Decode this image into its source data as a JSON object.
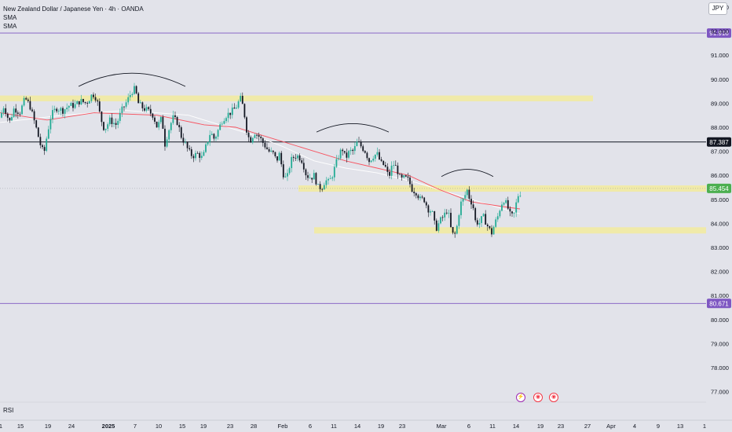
{
  "legend": {
    "symbol": "New Zealand Dollar / Japanese Yen · 4h · OANDA",
    "ind1": "SMA",
    "ind2": "SMA"
  },
  "currency": "JPY",
  "rsi_label": "RSI",
  "event_icons": [
    "flash-icon",
    "economic-event-icon",
    "economic-event-icon"
  ],
  "colors": {
    "up": "#22ab94",
    "down": "#131722",
    "sma_fast": "#f7525f",
    "sma_slow": "#ffffff",
    "zone": "#f2eb9d",
    "level_purple": "#7e57c2",
    "level_black": "#131722",
    "price_green": "#4caf50"
  },
  "chart_data": {
    "type": "candlestick",
    "symbol": "NZDJPY",
    "timeframe": "4h",
    "y_range": [
      76.6,
      93.5
    ],
    "y_ticks": [
      "93.000",
      "92.000",
      "91.000",
      "90.000",
      "89.000",
      "88.000",
      "87.000",
      "86.000",
      "85.000",
      "84.000",
      "83.000",
      "82.000",
      "81.000",
      "80.000",
      "79.000",
      "78.000",
      "77.000"
    ],
    "x_ticks": [
      "1",
      "15",
      "19",
      "24",
      "2025",
      "7",
      "10",
      "15",
      "19",
      "23",
      "28",
      "Feb",
      "6",
      "11",
      "14",
      "19",
      "23",
      "Mar",
      "6",
      "11",
      "14",
      "19",
      "23",
      "27",
      "Apr",
      "4",
      "9",
      "13",
      "1"
    ],
    "price_path": [
      [
        0,
        88.4
      ],
      [
        5,
        88.9
      ],
      [
        12,
        88.2
      ],
      [
        18,
        88.8
      ],
      [
        25,
        88.6
      ],
      [
        32,
        89.2
      ],
      [
        38,
        88.9
      ],
      [
        45,
        88.1
      ],
      [
        52,
        87.2
      ],
      [
        56,
        86.9
      ],
      [
        60,
        87.7
      ],
      [
        65,
        88.5
      ],
      [
        72,
        88.8
      ],
      [
        80,
        88.7
      ],
      [
        88,
        88.9
      ],
      [
        95,
        88.9
      ],
      [
        102,
        89.1
      ],
      [
        110,
        89.0
      ],
      [
        118,
        89.4
      ],
      [
        123,
        89.2
      ],
      [
        128,
        88.4
      ],
      [
        133,
        87.9
      ],
      [
        140,
        88.3
      ],
      [
        148,
        88.1
      ],
      [
        155,
        88.7
      ],
      [
        162,
        89.1
      ],
      [
        168,
        89.5
      ],
      [
        172,
        89.6
      ],
      [
        176,
        89.0
      ],
      [
        182,
        88.8
      ],
      [
        188,
        88.7
      ],
      [
        195,
        88.5
      ],
      [
        200,
        88.0
      ],
      [
        206,
        88.4
      ],
      [
        210,
        87.3
      ],
      [
        214,
        87.8
      ],
      [
        220,
        88.4
      ],
      [
        226,
        88.2
      ],
      [
        231,
        87.6
      ],
      [
        236,
        87.3
      ],
      [
        240,
        87.0
      ],
      [
        245,
        86.8
      ],
      [
        252,
        86.9
      ],
      [
        258,
        86.7
      ],
      [
        263,
        87.3
      ],
      [
        268,
        87.8
      ],
      [
        273,
        87.5
      ],
      [
        278,
        87.9
      ],
      [
        283,
        88.3
      ],
      [
        288,
        88.5
      ],
      [
        293,
        88.6
      ],
      [
        300,
        88.8
      ],
      [
        306,
        89.2
      ],
      [
        310,
        88.8
      ],
      [
        314,
        87.9
      ],
      [
        318,
        87.4
      ],
      [
        324,
        87.8
      ],
      [
        330,
        87.6
      ],
      [
        336,
        87.3
      ],
      [
        342,
        87.0
      ],
      [
        348,
        86.9
      ],
      [
        352,
        86.6
      ],
      [
        356,
        86.9
      ],
      [
        360,
        86.1
      ],
      [
        365,
        85.8
      ],
      [
        370,
        86.6
      ],
      [
        375,
        86.8
      ],
      [
        380,
        86.8
      ],
      [
        385,
        86.6
      ],
      [
        390,
        86.0
      ],
      [
        396,
        85.9
      ],
      [
        400,
        86.0
      ],
      [
        405,
        85.5
      ],
      [
        410,
        85.5
      ],
      [
        414,
        85.8
      ],
      [
        419,
        85.7
      ],
      [
        423,
        86.0
      ],
      [
        428,
        86.5
      ],
      [
        432,
        86.9
      ],
      [
        436,
        87.1
      ],
      [
        440,
        86.7
      ],
      [
        445,
        87.0
      ],
      [
        450,
        87.0
      ],
      [
        455,
        87.4
      ],
      [
        460,
        87.2
      ],
      [
        465,
        87.0
      ],
      [
        470,
        86.6
      ],
      [
        475,
        86.8
      ],
      [
        480,
        86.9
      ],
      [
        485,
        86.5
      ],
      [
        490,
        86.4
      ],
      [
        495,
        85.9
      ],
      [
        500,
        86.5
      ],
      [
        505,
        86.3
      ],
      [
        510,
        85.8
      ],
      [
        515,
        85.9
      ],
      [
        520,
        85.8
      ],
      [
        525,
        85.4
      ],
      [
        530,
        85.3
      ],
      [
        535,
        85.0
      ],
      [
        540,
        85.0
      ],
      [
        545,
        84.6
      ],
      [
        550,
        84.5
      ],
      [
        553,
        84.0
      ],
      [
        556,
        83.8
      ],
      [
        560,
        84.1
      ],
      [
        565,
        84.3
      ],
      [
        570,
        84.6
      ],
      [
        574,
        83.8
      ],
      [
        578,
        83.4
      ],
      [
        582,
        83.9
      ],
      [
        586,
        84.8
      ],
      [
        590,
        85.0
      ],
      [
        595,
        85.4
      ],
      [
        598,
        85.0
      ],
      [
        602,
        84.8
      ],
      [
        605,
        84.1
      ],
      [
        610,
        84.0
      ],
      [
        615,
        84.3
      ],
      [
        618,
        84.1
      ],
      [
        622,
        83.8
      ],
      [
        626,
        83.6
      ],
      [
        630,
        84.0
      ],
      [
        634,
        84.3
      ],
      [
        638,
        84.8
      ],
      [
        642,
        85.0
      ],
      [
        646,
        84.7
      ],
      [
        650,
        84.3
      ],
      [
        654,
        84.3
      ],
      [
        657,
        84.8
      ],
      [
        660,
        85.2
      ],
      [
        664,
        85.3
      ]
    ],
    "sma_fast": [
      [
        0,
        88.6
      ],
      [
        60,
        88.3
      ],
      [
        120,
        88.6
      ],
      [
        200,
        88.5
      ],
      [
        260,
        88.1
      ],
      [
        300,
        88.0
      ],
      [
        340,
        87.6
      ],
      [
        400,
        87.0
      ],
      [
        440,
        86.6
      ],
      [
        480,
        86.3
      ],
      [
        520,
        86.0
      ],
      [
        560,
        85.4
      ],
      [
        600,
        84.9
      ],
      [
        640,
        84.7
      ],
      [
        662,
        84.6
      ]
    ],
    "sma_slow": [
      [
        0,
        88.2
      ],
      [
        80,
        88.5
      ],
      [
        160,
        88.7
      ],
      [
        240,
        88.5
      ],
      [
        280,
        88.1
      ],
      [
        320,
        87.7
      ],
      [
        360,
        87.2
      ],
      [
        400,
        86.6
      ],
      [
        440,
        86.3
      ],
      [
        480,
        86.1
      ],
      [
        530,
        85.7
      ],
      [
        580,
        85.2
      ],
      [
        620,
        84.8
      ],
      [
        662,
        84.4
      ]
    ],
    "zones": [
      {
        "from_x": 0,
        "to_x": 755,
        "low": 89.08,
        "high": 89.32
      },
      {
        "from_x": 380,
        "to_x": 899,
        "low": 85.32,
        "high": 85.58
      },
      {
        "from_x": 400,
        "to_x": 899,
        "low": 83.58,
        "high": 83.84
      }
    ],
    "levels": [
      {
        "value": 91.918,
        "label": "91.918",
        "color": "purple"
      },
      {
        "value": 87.387,
        "label": "87.387",
        "color": "black"
      },
      {
        "value": 80.671,
        "label": "80.671",
        "color": "purple"
      }
    ],
    "current_price": {
      "value": 85.454,
      "label": "85.454"
    },
    "arcs": [
      {
        "x1": 100,
        "x2": 236,
        "base": 89.7,
        "peak": 90.25
      },
      {
        "x1": 403,
        "x2": 495,
        "base": 87.8,
        "peak": 88.15
      },
      {
        "x1": 562,
        "x2": 628,
        "base": 85.95,
        "peak": 86.25
      }
    ]
  }
}
